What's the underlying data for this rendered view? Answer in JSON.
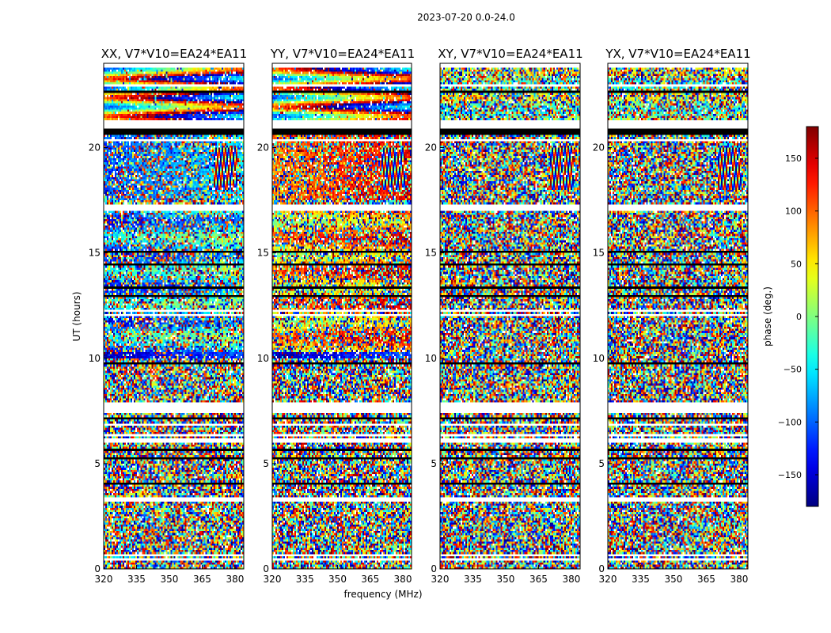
{
  "figure": {
    "suptitle": "2023-07-20 0.0-24.0",
    "xlabel": "frequency (MHz)",
    "ylabel": "UT (hours)",
    "colorbar_label": "phase (deg.)"
  },
  "chart_data": [
    {
      "type": "heatmap",
      "title": "XX, V7*V10=EA24*EA11",
      "x_ticks": [
        "320",
        "335",
        "350",
        "365",
        "380"
      ],
      "y_ticks": [
        "0",
        "5",
        "10",
        "15",
        "20"
      ],
      "xlim": [
        320,
        384
      ],
      "ylim": [
        0,
        24
      ],
      "colormap": "jet",
      "clim": [
        -180,
        180
      ]
    },
    {
      "type": "heatmap",
      "title": "YY, V7*V10=EA24*EA11",
      "x_ticks": [
        "320",
        "335",
        "350",
        "365",
        "380"
      ],
      "y_ticks": [
        "0",
        "5",
        "10",
        "15",
        "20"
      ],
      "xlim": [
        320,
        384
      ],
      "ylim": [
        0,
        24
      ],
      "colormap": "jet",
      "clim": [
        -180,
        180
      ]
    },
    {
      "type": "heatmap",
      "title": "XY, V7*V10=EA24*EA11",
      "x_ticks": [
        "320",
        "335",
        "350",
        "365",
        "380"
      ],
      "y_ticks": [
        "0",
        "5",
        "10",
        "15",
        "20"
      ],
      "xlim": [
        320,
        384
      ],
      "ylim": [
        0,
        24
      ],
      "colormap": "jet",
      "clim": [
        -180,
        180
      ]
    },
    {
      "type": "heatmap",
      "title": "YX, V7*V10=EA24*EA11",
      "x_ticks": [
        "320",
        "335",
        "350",
        "365",
        "380"
      ],
      "y_ticks": [
        "0",
        "5",
        "10",
        "15",
        "20"
      ],
      "xlim": [
        320,
        384
      ],
      "ylim": [
        0,
        24
      ],
      "colormap": "jet",
      "clim": [
        -180,
        180
      ]
    }
  ],
  "colorbar": {
    "ticks": [
      "150",
      "100",
      "50",
      "0",
      "−50",
      "−100",
      "−150"
    ],
    "range": [
      -180,
      180
    ]
  }
}
